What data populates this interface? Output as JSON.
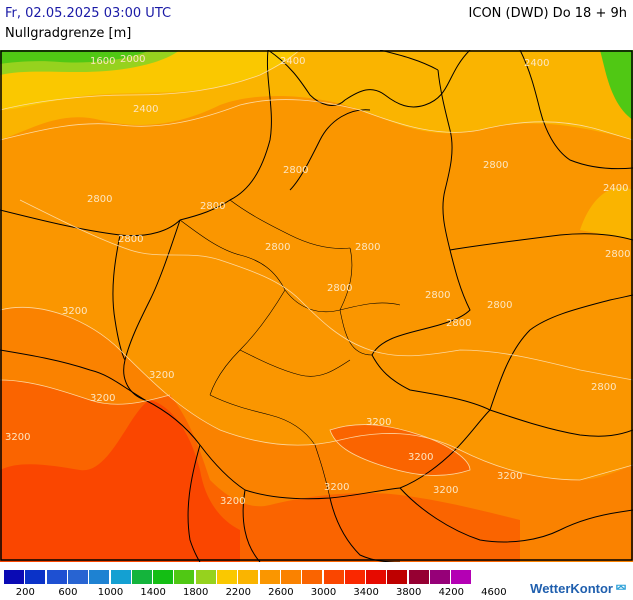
{
  "header": {
    "datetime": "Fr, 02.05.2025 03:00 UTC",
    "model_run": "ICON (DWD) Do 18 + 9h",
    "parameter": "Nullgradgrenze [m]"
  },
  "map": {
    "region": "Mitteleuropa / Deutschland",
    "contour_labels": [
      {
        "text": "1600",
        "key": "c1600a"
      },
      {
        "text": "2000",
        "key": "c2000a"
      },
      {
        "text": "2400",
        "key": "c2400a"
      },
      {
        "text": "2400",
        "key": "c2400b"
      },
      {
        "text": "2400",
        "key": "c2400c"
      },
      {
        "text": "2400",
        "key": "c2400d"
      },
      {
        "text": "2800",
        "key": "c2800a"
      },
      {
        "text": "2800",
        "key": "c2800b"
      },
      {
        "text": "2800",
        "key": "c2800c"
      },
      {
        "text": "2800",
        "key": "c2800d"
      },
      {
        "text": "2800",
        "key": "c2800e"
      },
      {
        "text": "2800",
        "key": "c2800f"
      },
      {
        "text": "2800",
        "key": "c2800g"
      },
      {
        "text": "2800",
        "key": "c2800h"
      },
      {
        "text": "2800",
        "key": "c2800i"
      },
      {
        "text": "2800",
        "key": "c2800j"
      },
      {
        "text": "2800",
        "key": "c2800k"
      },
      {
        "text": "2800",
        "key": "c2800l"
      },
      {
        "text": "2800",
        "key": "c2800m"
      },
      {
        "text": "3200",
        "key": "c3200a"
      },
      {
        "text": "3200",
        "key": "c3200b"
      },
      {
        "text": "3200",
        "key": "c3200c"
      },
      {
        "text": "3200",
        "key": "c3200d"
      },
      {
        "text": "3200",
        "key": "c3200e"
      },
      {
        "text": "3200",
        "key": "c3200f"
      },
      {
        "text": "3200",
        "key": "c3200g"
      },
      {
        "text": "3200",
        "key": "c3200h"
      },
      {
        "text": "3200",
        "key": "c3200i"
      },
      {
        "text": "3200",
        "key": "c3200j"
      }
    ]
  },
  "legend": {
    "colors": [
      "#0a0ab4",
      "#0a32c8",
      "#1e50d2",
      "#2864d2",
      "#1e82d2",
      "#14a0d2",
      "#14b43c",
      "#14be14",
      "#50c814",
      "#96d21e",
      "#fac800",
      "#fab400",
      "#fa9600",
      "#fa8200",
      "#fa6400",
      "#fa4600",
      "#fa2800",
      "#e60a00",
      "#be0000",
      "#960032",
      "#960078",
      "#b400b4"
    ],
    "ticks": [
      "200",
      "600",
      "1000",
      "1400",
      "1800",
      "2200",
      "2600",
      "3000",
      "3400",
      "3800",
      "4200",
      "4600"
    ]
  },
  "brand": {
    "name": "WetterKontor",
    "mark_icon": "signal-arcs-icon"
  }
}
